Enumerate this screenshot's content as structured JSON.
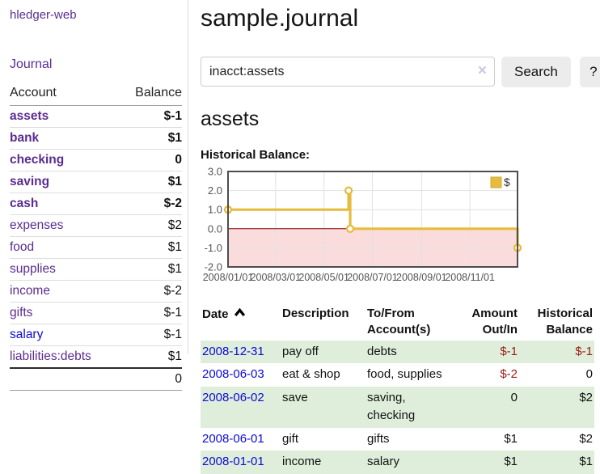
{
  "sidebar": {
    "brand": "hledger-web",
    "journal_label": "Journal",
    "accounts_table": {
      "account_header": "Account",
      "balance_header": "Balance",
      "rows": [
        {
          "name": "assets",
          "balance": "$-1",
          "indent": 0,
          "bold": true,
          "unvisited": false
        },
        {
          "name": "bank",
          "balance": "$1",
          "indent": 1,
          "bold": true,
          "unvisited": false
        },
        {
          "name": "checking",
          "balance": "0",
          "indent": 2,
          "bold": true,
          "unvisited": false
        },
        {
          "name": "saving",
          "balance": "$1",
          "indent": 2,
          "bold": true,
          "unvisited": false
        },
        {
          "name": "cash",
          "balance": "$-2",
          "indent": 1,
          "bold": true,
          "unvisited": false
        },
        {
          "name": "expenses",
          "balance": "$2",
          "indent": 0,
          "bold": false,
          "unvisited": false
        },
        {
          "name": "food",
          "balance": "$1",
          "indent": 1,
          "bold": false,
          "unvisited": false
        },
        {
          "name": "supplies",
          "balance": "$1",
          "indent": 1,
          "bold": false,
          "unvisited": false
        },
        {
          "name": "income",
          "balance": "$-2",
          "indent": 0,
          "bold": false,
          "unvisited": false
        },
        {
          "name": "gifts",
          "balance": "$-1",
          "indent": 1,
          "bold": false,
          "unvisited": false
        },
        {
          "name": "salary",
          "balance": "$-1",
          "indent": 1,
          "bold": false,
          "unvisited": true
        },
        {
          "name": "liabilities:debts",
          "balance": "$1",
          "indent": 0,
          "bold": false,
          "unvisited": false
        }
      ],
      "total": "0"
    }
  },
  "main": {
    "title": "sample.journal",
    "search": {
      "query": "inacct:assets",
      "button_label": "Search",
      "help_label": "?",
      "clear_icon": "×"
    },
    "account_heading": "assets"
  },
  "chart_data": {
    "type": "line",
    "title": "Historical Balance:",
    "step": true,
    "series": [
      {
        "name": "$",
        "color": "#e6bc3e",
        "points": [
          {
            "date": "2008-01-01",
            "value": 1
          },
          {
            "date": "2008-06-01",
            "value": 2
          },
          {
            "date": "2008-06-03",
            "value": 0
          },
          {
            "date": "2008-12-31",
            "value": -1
          }
        ]
      }
    ],
    "x_range": [
      "2008-01-01",
      "2008-12-31"
    ],
    "x_ticks": [
      "2008/01/01",
      "2008/03/01",
      "2008/05/01",
      "2008/07/01",
      "2008/09/01",
      "2008/11/01"
    ],
    "y_ticks": [
      3.0,
      2.0,
      1.0,
      0.0,
      -1.0,
      -2.0
    ],
    "ylim": [
      -2,
      3
    ],
    "grid": true,
    "legend_position": "top-right",
    "negative_fill": "#fbdcdc",
    "zero_line_color": "#8b0000"
  },
  "register": {
    "columns": [
      {
        "label": "Date",
        "align": "left",
        "sorted": "asc"
      },
      {
        "label": "Description",
        "align": "left",
        "sorted": null
      },
      {
        "label": "To/From Account(s)",
        "align": "left",
        "sorted": null
      },
      {
        "label": "Amount Out/In",
        "align": "right",
        "sorted": null
      },
      {
        "label": "Historical Balance",
        "align": "right",
        "sorted": null
      }
    ],
    "rows": [
      {
        "date": "2008-12-31",
        "description": "pay off",
        "accounts": "debts",
        "amount": "$-1",
        "balance": "$-1"
      },
      {
        "date": "2008-06-03",
        "description": "eat & shop",
        "accounts": "food, supplies",
        "amount": "$-2",
        "balance": "0"
      },
      {
        "date": "2008-06-02",
        "description": "save",
        "accounts": "saving, checking",
        "amount": "0",
        "balance": "$2"
      },
      {
        "date": "2008-06-01",
        "description": "gift",
        "accounts": "gifts",
        "amount": "$1",
        "balance": "$2"
      },
      {
        "date": "2008-01-01",
        "description": "income",
        "accounts": "salary",
        "amount": "$1",
        "balance": "$1"
      }
    ]
  },
  "colors": {
    "accent_purple": "#5b2d90",
    "link_blue": "#0b0bd8",
    "negative_strong": "#9a1b14",
    "negative_soft": "#bc8f8f",
    "row_green": "#dfeeda",
    "chart_line": "#e6bc3e",
    "chart_negative_fill": "#fbdcdc",
    "chart_zero_line": "#8b0000",
    "chart_border": "#4d4d4d",
    "axis_text": "#545454"
  }
}
